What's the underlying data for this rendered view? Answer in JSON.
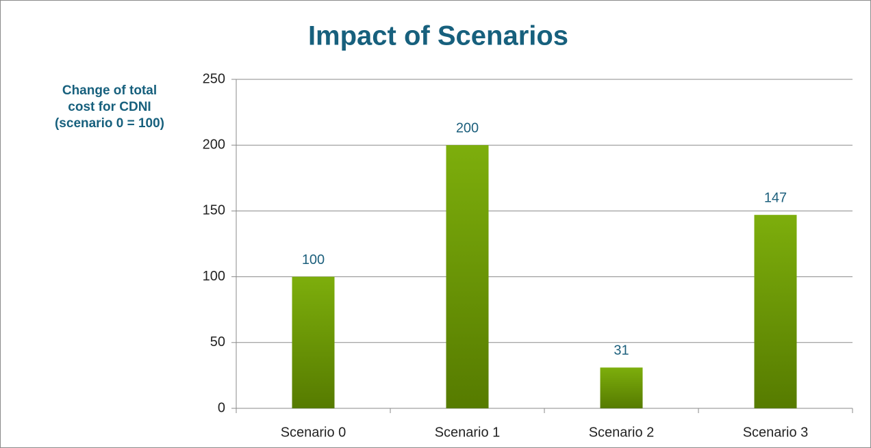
{
  "chart_data": {
    "type": "bar",
    "title": "Impact of Scenarios",
    "y_label": [
      "Change of total",
      "cost for CDNI",
      "(scenario 0 = 100)"
    ],
    "categories": [
      "Scenario 0",
      "Scenario 1",
      "Scenario 2",
      "Scenario 3"
    ],
    "values": [
      100,
      200,
      31,
      147
    ],
    "gradient": [
      "#7dae0c",
      "#567b00"
    ],
    "ylim": [
      0,
      250
    ],
    "yticks": [
      0,
      50,
      100,
      150,
      200,
      250
    ],
    "grid": true
  }
}
